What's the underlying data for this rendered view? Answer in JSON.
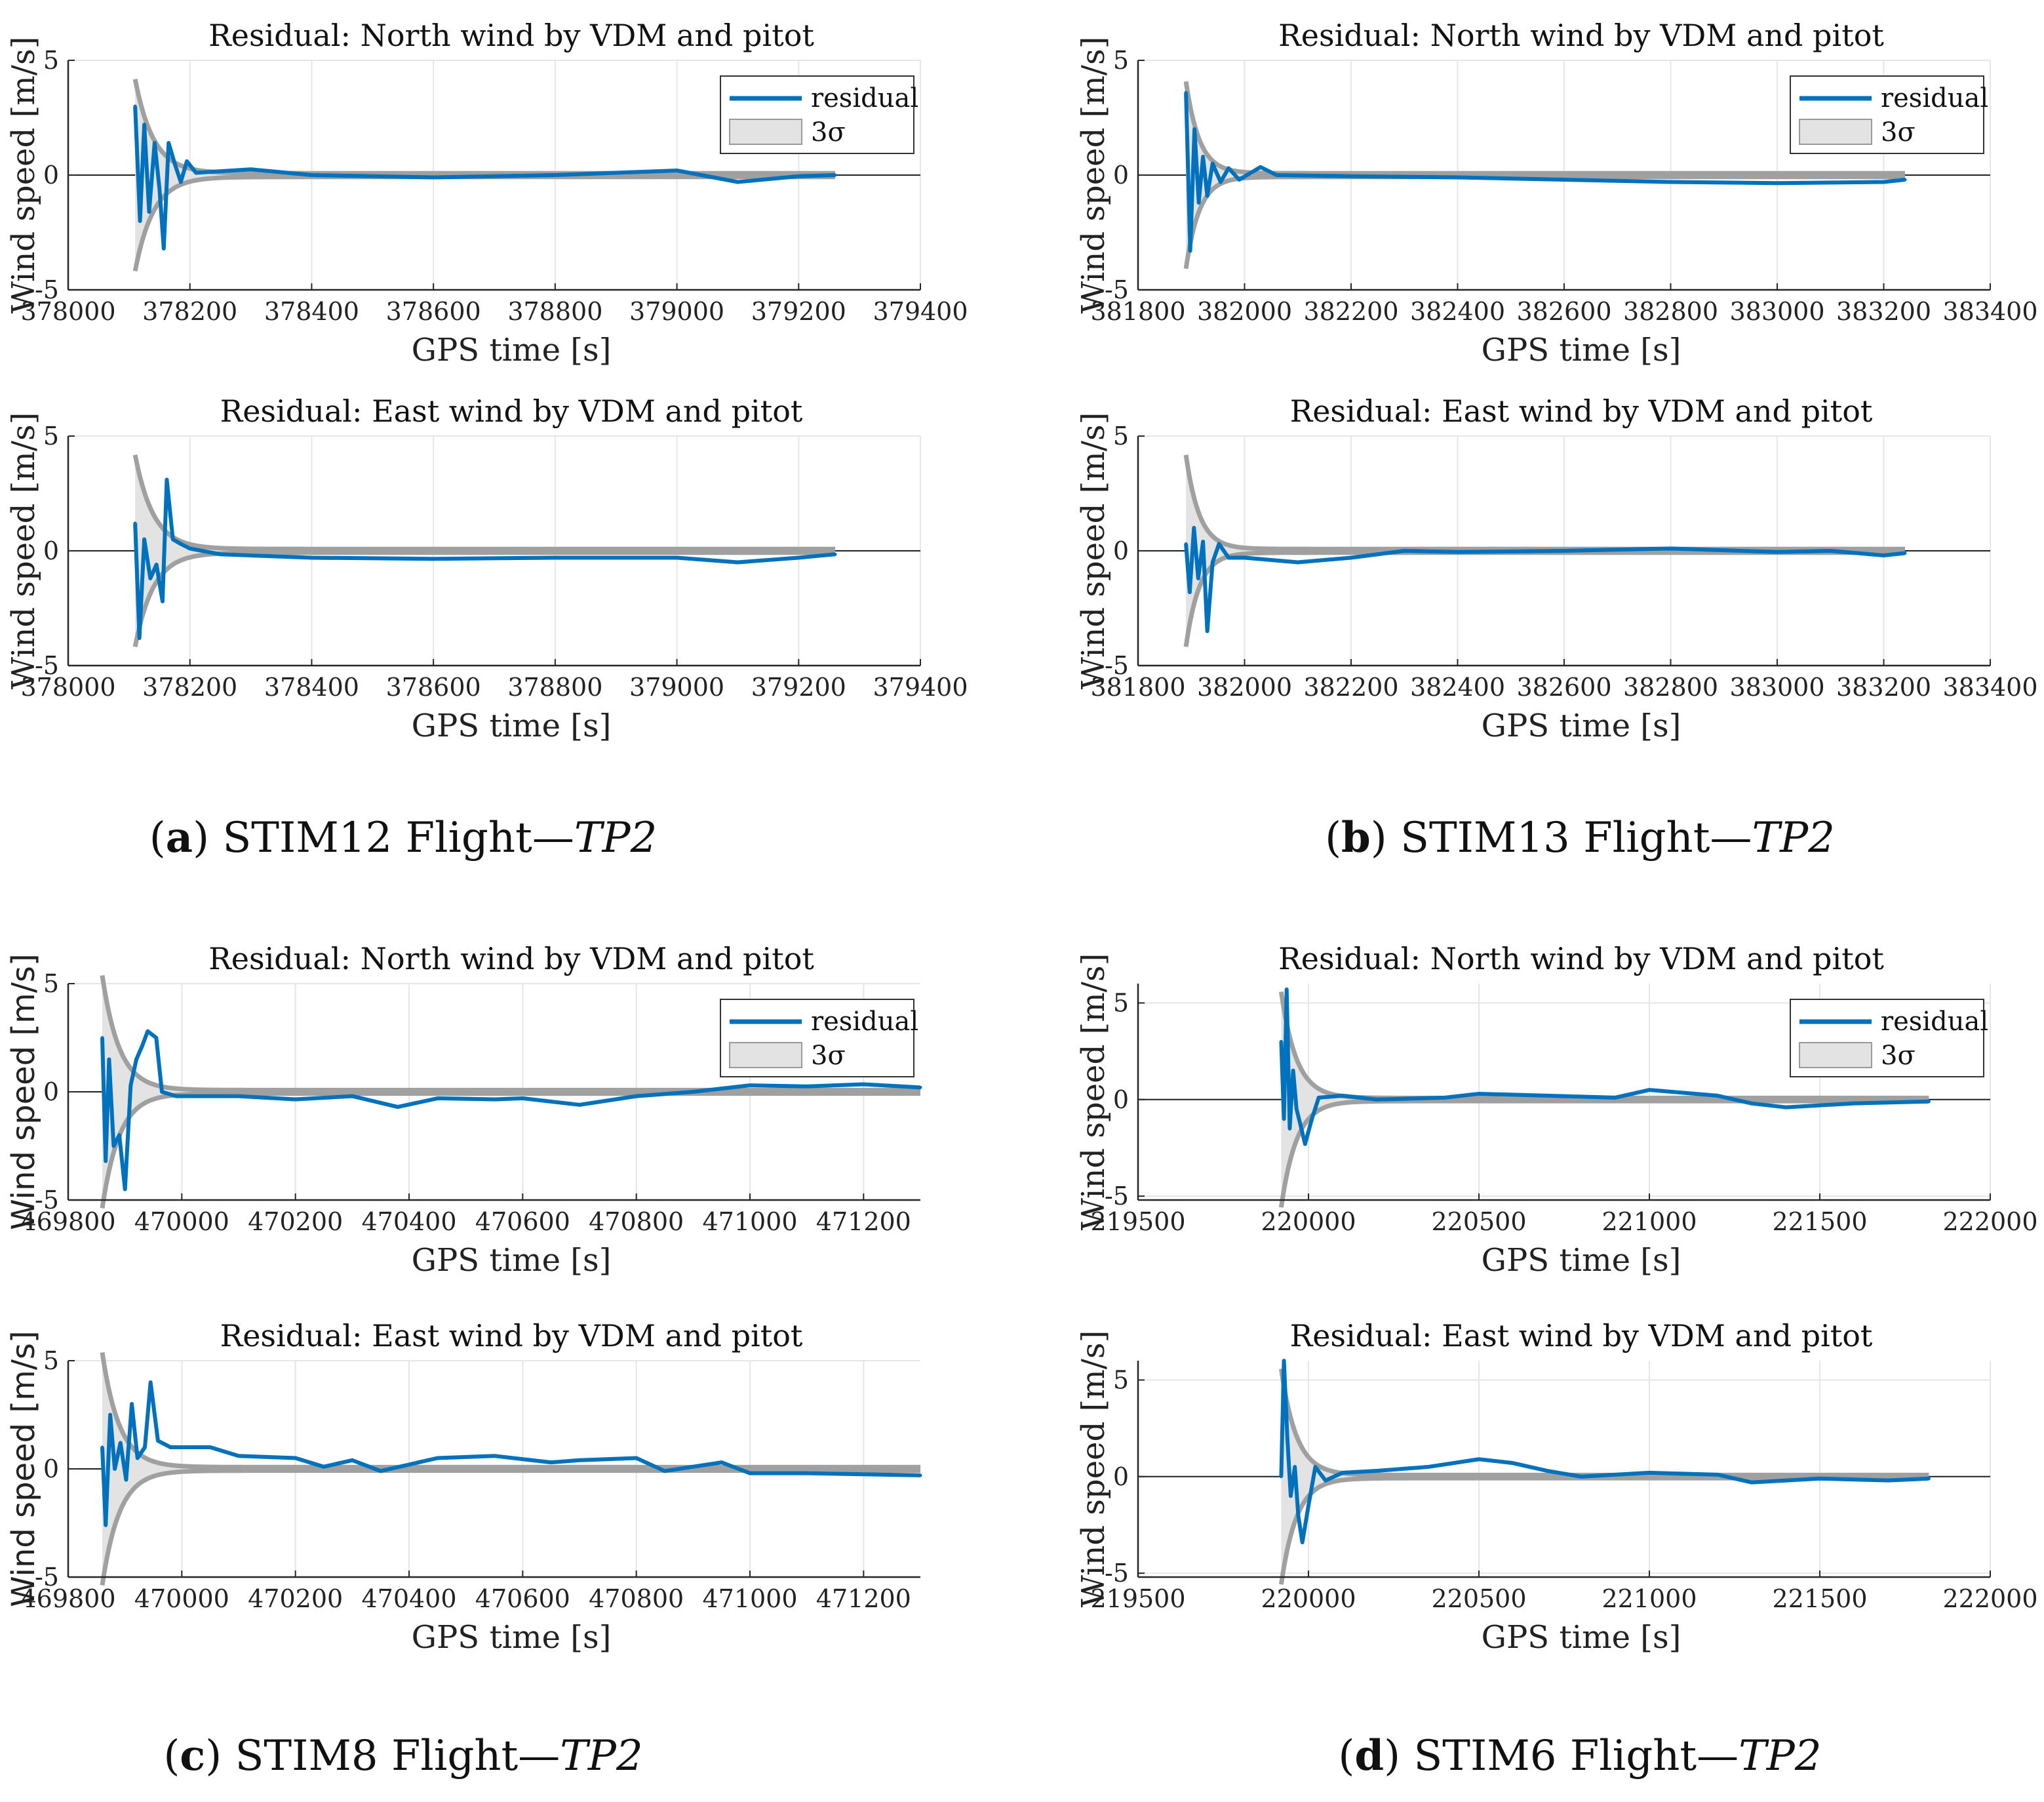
{
  "colors": {
    "residual": "#0072BD",
    "sigma_line": "#A0A0A0",
    "sigma_fill": "#E3E3E3",
    "grid": "#E6E6E6",
    "axis": "#262626"
  },
  "panels": [
    {
      "label": "a",
      "name": "STIM12 Flight—",
      "suffix": "TP2"
    },
    {
      "label": "b",
      "name": "STIM13 Flight—",
      "suffix": "TP2"
    },
    {
      "label": "c",
      "name": "STIM8 Flight—",
      "suffix": "TP2"
    },
    {
      "label": "d",
      "name": "STIM6 Flight—",
      "suffix": "TP2"
    }
  ],
  "legend": {
    "residual": "residual",
    "sigma": "3σ"
  },
  "chart_data": [
    {
      "type": "line",
      "panel": "a",
      "component": "north",
      "title": "Residual: North wind by VDM and pitot",
      "xlabel": "GPS time [s]",
      "ylabel": "Wind speed [m/s]",
      "ylabel_font": "serif",
      "xlim": [
        378000,
        379400
      ],
      "ylim": [
        -5,
        5
      ],
      "xticks": [
        378000,
        378200,
        378400,
        378600,
        378800,
        379000,
        379200,
        379400
      ],
      "yticks": [
        -5,
        0,
        5
      ],
      "grid": true,
      "legend": "top-right",
      "x_start": 378110,
      "x_end": 379260,
      "sigma_start": 4.1,
      "sigma_tau": 30,
      "residual": [
        [
          378110,
          3.0
        ],
        [
          378118,
          -2.0
        ],
        [
          378125,
          2.2
        ],
        [
          378133,
          -1.6
        ],
        [
          378142,
          1.4
        ],
        [
          378150,
          -0.6
        ],
        [
          378157,
          -3.2
        ],
        [
          378165,
          1.4
        ],
        [
          378175,
          0.5
        ],
        [
          378185,
          -0.3
        ],
        [
          378195,
          0.6
        ],
        [
          378210,
          0.1
        ],
        [
          378300,
          0.25
        ],
        [
          378400,
          0.0
        ],
        [
          378600,
          -0.1
        ],
        [
          378800,
          0.0
        ],
        [
          379000,
          0.2
        ],
        [
          379100,
          -0.3
        ],
        [
          379200,
          -0.05
        ],
        [
          379260,
          0.0
        ]
      ]
    },
    {
      "type": "line",
      "panel": "a",
      "component": "east",
      "title": "Residual: East wind by VDM and pitot",
      "xlabel": "GPS time [s]",
      "ylabel": "Wind speed [m/s]",
      "ylabel_font": "serif",
      "xlim": [
        378000,
        379400
      ],
      "ylim": [
        -5,
        5
      ],
      "xticks": [
        378000,
        378200,
        378400,
        378600,
        378800,
        379000,
        379200,
        379400
      ],
      "yticks": [
        -5,
        0,
        5
      ],
      "grid": true,
      "x_start": 378110,
      "x_end": 379260,
      "sigma_start": 4.1,
      "sigma_tau": 30,
      "residual": [
        [
          378110,
          1.2
        ],
        [
          378117,
          -3.8
        ],
        [
          378125,
          0.5
        ],
        [
          378135,
          -1.2
        ],
        [
          378145,
          -0.6
        ],
        [
          378155,
          -2.2
        ],
        [
          378162,
          3.1
        ],
        [
          378172,
          0.5
        ],
        [
          378185,
          0.3
        ],
        [
          378200,
          0.1
        ],
        [
          378250,
          -0.15
        ],
        [
          378400,
          -0.3
        ],
        [
          378600,
          -0.35
        ],
        [
          378800,
          -0.3
        ],
        [
          379000,
          -0.3
        ],
        [
          379100,
          -0.5
        ],
        [
          379200,
          -0.3
        ],
        [
          379260,
          -0.15
        ]
      ]
    },
    {
      "type": "line",
      "panel": "b",
      "component": "north",
      "title": "Residual: North wind by VDM and pitot",
      "xlabel": "GPS time [s]",
      "ylabel": "Wind speed [m/s]",
      "ylabel_font": "serif",
      "xlim": [
        381800,
        383400
      ],
      "ylim": [
        -5,
        5
      ],
      "xticks": [
        381800,
        382000,
        382200,
        382400,
        382600,
        382800,
        383000,
        383200,
        383400
      ],
      "yticks": [
        -5,
        0,
        5
      ],
      "grid": true,
      "legend": "top-right",
      "x_start": 381890,
      "x_end": 383240,
      "sigma_start": 4.0,
      "sigma_tau": 25,
      "residual": [
        [
          381890,
          3.6
        ],
        [
          381898,
          -3.3
        ],
        [
          381906,
          2.0
        ],
        [
          381914,
          -1.2
        ],
        [
          381922,
          0.8
        ],
        [
          381930,
          -0.9
        ],
        [
          381940,
          0.5
        ],
        [
          381955,
          -0.3
        ],
        [
          381970,
          0.3
        ],
        [
          381990,
          -0.2
        ],
        [
          382030,
          0.35
        ],
        [
          382060,
          0.0
        ],
        [
          382200,
          -0.05
        ],
        [
          382400,
          -0.1
        ],
        [
          382600,
          -0.2
        ],
        [
          382800,
          -0.3
        ],
        [
          383000,
          -0.35
        ],
        [
          383200,
          -0.3
        ],
        [
          383240,
          -0.2
        ]
      ]
    },
    {
      "type": "line",
      "panel": "b",
      "component": "east",
      "title": "Residual: East wind by VDM and pitot",
      "xlabel": "GPS time [s]",
      "ylabel": "Wind speed [m/s]",
      "ylabel_font": "serif",
      "xlim": [
        381800,
        383400
      ],
      "ylim": [
        -5,
        5
      ],
      "xticks": [
        381800,
        382000,
        382200,
        382400,
        382600,
        382800,
        383000,
        383200,
        383400
      ],
      "yticks": [
        -5,
        0,
        5
      ],
      "grid": true,
      "x_start": 381890,
      "x_end": 383240,
      "sigma_start": 4.1,
      "sigma_tau": 25,
      "residual": [
        [
          381890,
          0.3
        ],
        [
          381897,
          -1.8
        ],
        [
          381905,
          1.0
        ],
        [
          381913,
          -1.2
        ],
        [
          381922,
          0.4
        ],
        [
          381930,
          -3.5
        ],
        [
          381940,
          -0.5
        ],
        [
          381952,
          0.3
        ],
        [
          381970,
          -0.3
        ],
        [
          382000,
          -0.3
        ],
        [
          382100,
          -0.5
        ],
        [
          382200,
          -0.3
        ],
        [
          382300,
          0.0
        ],
        [
          382400,
          -0.05
        ],
        [
          382600,
          0.0
        ],
        [
          382800,
          0.1
        ],
        [
          383000,
          -0.05
        ],
        [
          383100,
          0.0
        ],
        [
          383200,
          -0.2
        ],
        [
          383240,
          -0.1
        ]
      ]
    },
    {
      "type": "line",
      "panel": "c",
      "component": "north",
      "title": "Residual: North wind by VDM and pitot",
      "xlabel": "GPS time [s]",
      "ylabel": "Wind speed [m/s]",
      "ylabel_font": "sans",
      "xlim": [
        469800,
        471300
      ],
      "ylim": [
        -5,
        5
      ],
      "xticks": [
        469800,
        470000,
        470200,
        470400,
        470600,
        470800,
        471000,
        471200
      ],
      "yticks": [
        -5,
        0,
        5
      ],
      "grid": true,
      "legend": "top-right",
      "x_start": 469860,
      "x_end": 471300,
      "sigma_start": 5.3,
      "sigma_tau": 30,
      "residual": [
        [
          469860,
          2.5
        ],
        [
          469866,
          -3.2
        ],
        [
          469872,
          1.5
        ],
        [
          469880,
          -2.5
        ],
        [
          469890,
          -2.0
        ],
        [
          469900,
          -4.5
        ],
        [
          469910,
          0.3
        ],
        [
          469920,
          1.5
        ],
        [
          469930,
          2.1
        ],
        [
          469940,
          2.8
        ],
        [
          469955,
          2.5
        ],
        [
          469965,
          0.0
        ],
        [
          469990,
          -0.2
        ],
        [
          470100,
          -0.2
        ],
        [
          470200,
          -0.35
        ],
        [
          470300,
          -0.2
        ],
        [
          470380,
          -0.7
        ],
        [
          470450,
          -0.3
        ],
        [
          470550,
          -0.35
        ],
        [
          470600,
          -0.3
        ],
        [
          470700,
          -0.6
        ],
        [
          470800,
          -0.2
        ],
        [
          470900,
          0.0
        ],
        [
          471000,
          0.3
        ],
        [
          471100,
          0.25
        ],
        [
          471200,
          0.35
        ],
        [
          471300,
          0.2
        ]
      ]
    },
    {
      "type": "line",
      "panel": "c",
      "component": "east",
      "title": "Residual: East wind by VDM and pitot",
      "xlabel": "GPS time [s]",
      "ylabel": "Wind speed [m/s]",
      "ylabel_font": "sans",
      "xlim": [
        469800,
        471300
      ],
      "ylim": [
        -5,
        5
      ],
      "xticks": [
        469800,
        470000,
        470200,
        470400,
        470600,
        470800,
        471000,
        471200
      ],
      "yticks": [
        -5,
        0,
        5
      ],
      "grid": true,
      "x_start": 469860,
      "x_end": 471300,
      "sigma_start": 5.3,
      "sigma_tau": 30,
      "residual": [
        [
          469860,
          1.0
        ],
        [
          469866,
          -2.6
        ],
        [
          469874,
          2.5
        ],
        [
          469882,
          0.0
        ],
        [
          469892,
          1.2
        ],
        [
          469902,
          -0.5
        ],
        [
          469912,
          3.0
        ],
        [
          469922,
          0.5
        ],
        [
          469935,
          1.0
        ],
        [
          469945,
          4.0
        ],
        [
          469958,
          1.3
        ],
        [
          469980,
          1.0
        ],
        [
          470050,
          1.0
        ],
        [
          470100,
          0.6
        ],
        [
          470200,
          0.5
        ],
        [
          470250,
          0.1
        ],
        [
          470300,
          0.4
        ],
        [
          470350,
          -0.1
        ],
        [
          470450,
          0.5
        ],
        [
          470550,
          0.6
        ],
        [
          470650,
          0.3
        ],
        [
          470700,
          0.4
        ],
        [
          470800,
          0.5
        ],
        [
          470850,
          -0.1
        ],
        [
          470950,
          0.3
        ],
        [
          471000,
          -0.2
        ],
        [
          471100,
          -0.2
        ],
        [
          471200,
          -0.25
        ],
        [
          471300,
          -0.3
        ]
      ]
    },
    {
      "type": "line",
      "panel": "d",
      "component": "north",
      "title": "Residual: North wind by VDM and pitot",
      "xlabel": "GPS time [s]",
      "ylabel": "Wind speed [m/s]",
      "ylabel_font": "serif",
      "xlim": [
        219500,
        222000
      ],
      "ylim": [
        -5.2,
        6
      ],
      "xticks": [
        219500,
        220000,
        220500,
        221000,
        221500,
        222000
      ],
      "yticks": [
        -5,
        0,
        5
      ],
      "grid": true,
      "legend": "top-right",
      "x_start": 219920,
      "x_end": 221820,
      "sigma_start": 5.5,
      "sigma_tau": 45,
      "residual": [
        [
          219920,
          3.0
        ],
        [
          219928,
          -1.0
        ],
        [
          219936,
          5.7
        ],
        [
          219945,
          -1.5
        ],
        [
          219955,
          1.5
        ],
        [
          219965,
          -0.5
        ],
        [
          219975,
          -1.2
        ],
        [
          219990,
          -2.3
        ],
        [
          220010,
          -1.0
        ],
        [
          220030,
          0.1
        ],
        [
          220100,
          0.2
        ],
        [
          220200,
          0.0
        ],
        [
          220400,
          0.1
        ],
        [
          220500,
          0.3
        ],
        [
          220700,
          0.2
        ],
        [
          220900,
          0.1
        ],
        [
          221000,
          0.5
        ],
        [
          221200,
          0.2
        ],
        [
          221300,
          -0.2
        ],
        [
          221400,
          -0.4
        ],
        [
          221600,
          -0.2
        ],
        [
          221820,
          -0.1
        ]
      ]
    },
    {
      "type": "line",
      "panel": "d",
      "component": "east",
      "title": "Residual: East wind by VDM and pitot",
      "xlabel": "GPS time [s]",
      "ylabel": "Wind speed [m/s]",
      "ylabel_font": "serif",
      "xlim": [
        219500,
        222000
      ],
      "ylim": [
        -5.2,
        6
      ],
      "xticks": [
        219500,
        220000,
        220500,
        221000,
        221500,
        222000
      ],
      "yticks": [
        -5,
        0,
        5
      ],
      "grid": true,
      "x_start": 219920,
      "x_end": 221820,
      "sigma_start": 5.5,
      "sigma_tau": 45,
      "residual": [
        [
          219920,
          0.0
        ],
        [
          219928,
          6.0
        ],
        [
          219938,
          2.0
        ],
        [
          219948,
          -1.0
        ],
        [
          219960,
          0.5
        ],
        [
          219970,
          -2.0
        ],
        [
          219982,
          -3.4
        ],
        [
          220000,
          -1.5
        ],
        [
          220020,
          0.5
        ],
        [
          220050,
          -0.2
        ],
        [
          220100,
          0.2
        ],
        [
          220200,
          0.3
        ],
        [
          220350,
          0.5
        ],
        [
          220500,
          0.9
        ],
        [
          220600,
          0.7
        ],
        [
          220700,
          0.3
        ],
        [
          220800,
          0.0
        ],
        [
          221000,
          0.2
        ],
        [
          221200,
          0.1
        ],
        [
          221300,
          -0.3
        ],
        [
          221500,
          -0.1
        ],
        [
          221700,
          -0.2
        ],
        [
          221820,
          -0.1
        ]
      ]
    }
  ]
}
